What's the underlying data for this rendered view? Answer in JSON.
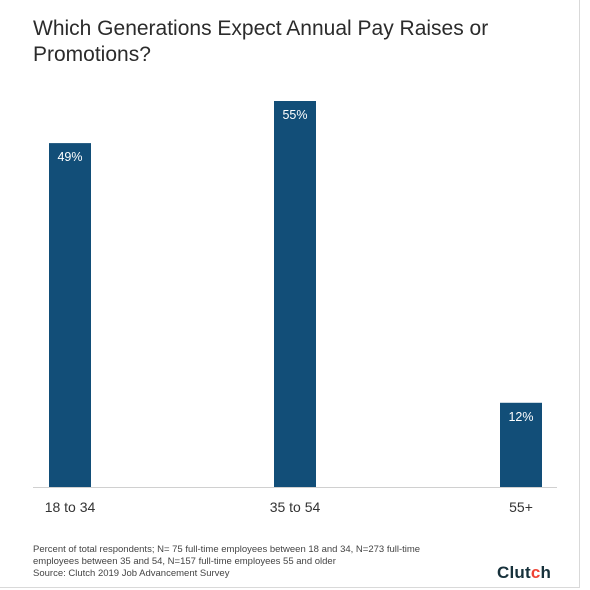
{
  "chart_data": {
    "type": "bar",
    "title": "Which Generations Expect Annual Pay Raises or Promotions?",
    "categories": [
      "18 to 34",
      "35 to 54",
      "55+"
    ],
    "values": [
      49,
      55,
      12
    ],
    "data_labels": [
      "49%",
      "55%",
      "12%"
    ],
    "ylim": [
      0,
      55
    ],
    "xlabel": "",
    "ylabel": "",
    "grid": false,
    "legend": "none",
    "bar_color": "#124e78"
  },
  "footnote": {
    "line1": "Percent of total respondents; N= 75 full-time employees between 18 and 34, N=273 full-time",
    "line2": "employees between 35 and 54, N=157 full-time employees 55 and older",
    "line3": "Source: Clutch 2019 Job Advancement Survey"
  },
  "brand": {
    "prefix": "Clut",
    "accent": "c",
    "suffix": "h",
    "accent_color": "#ef4335"
  }
}
